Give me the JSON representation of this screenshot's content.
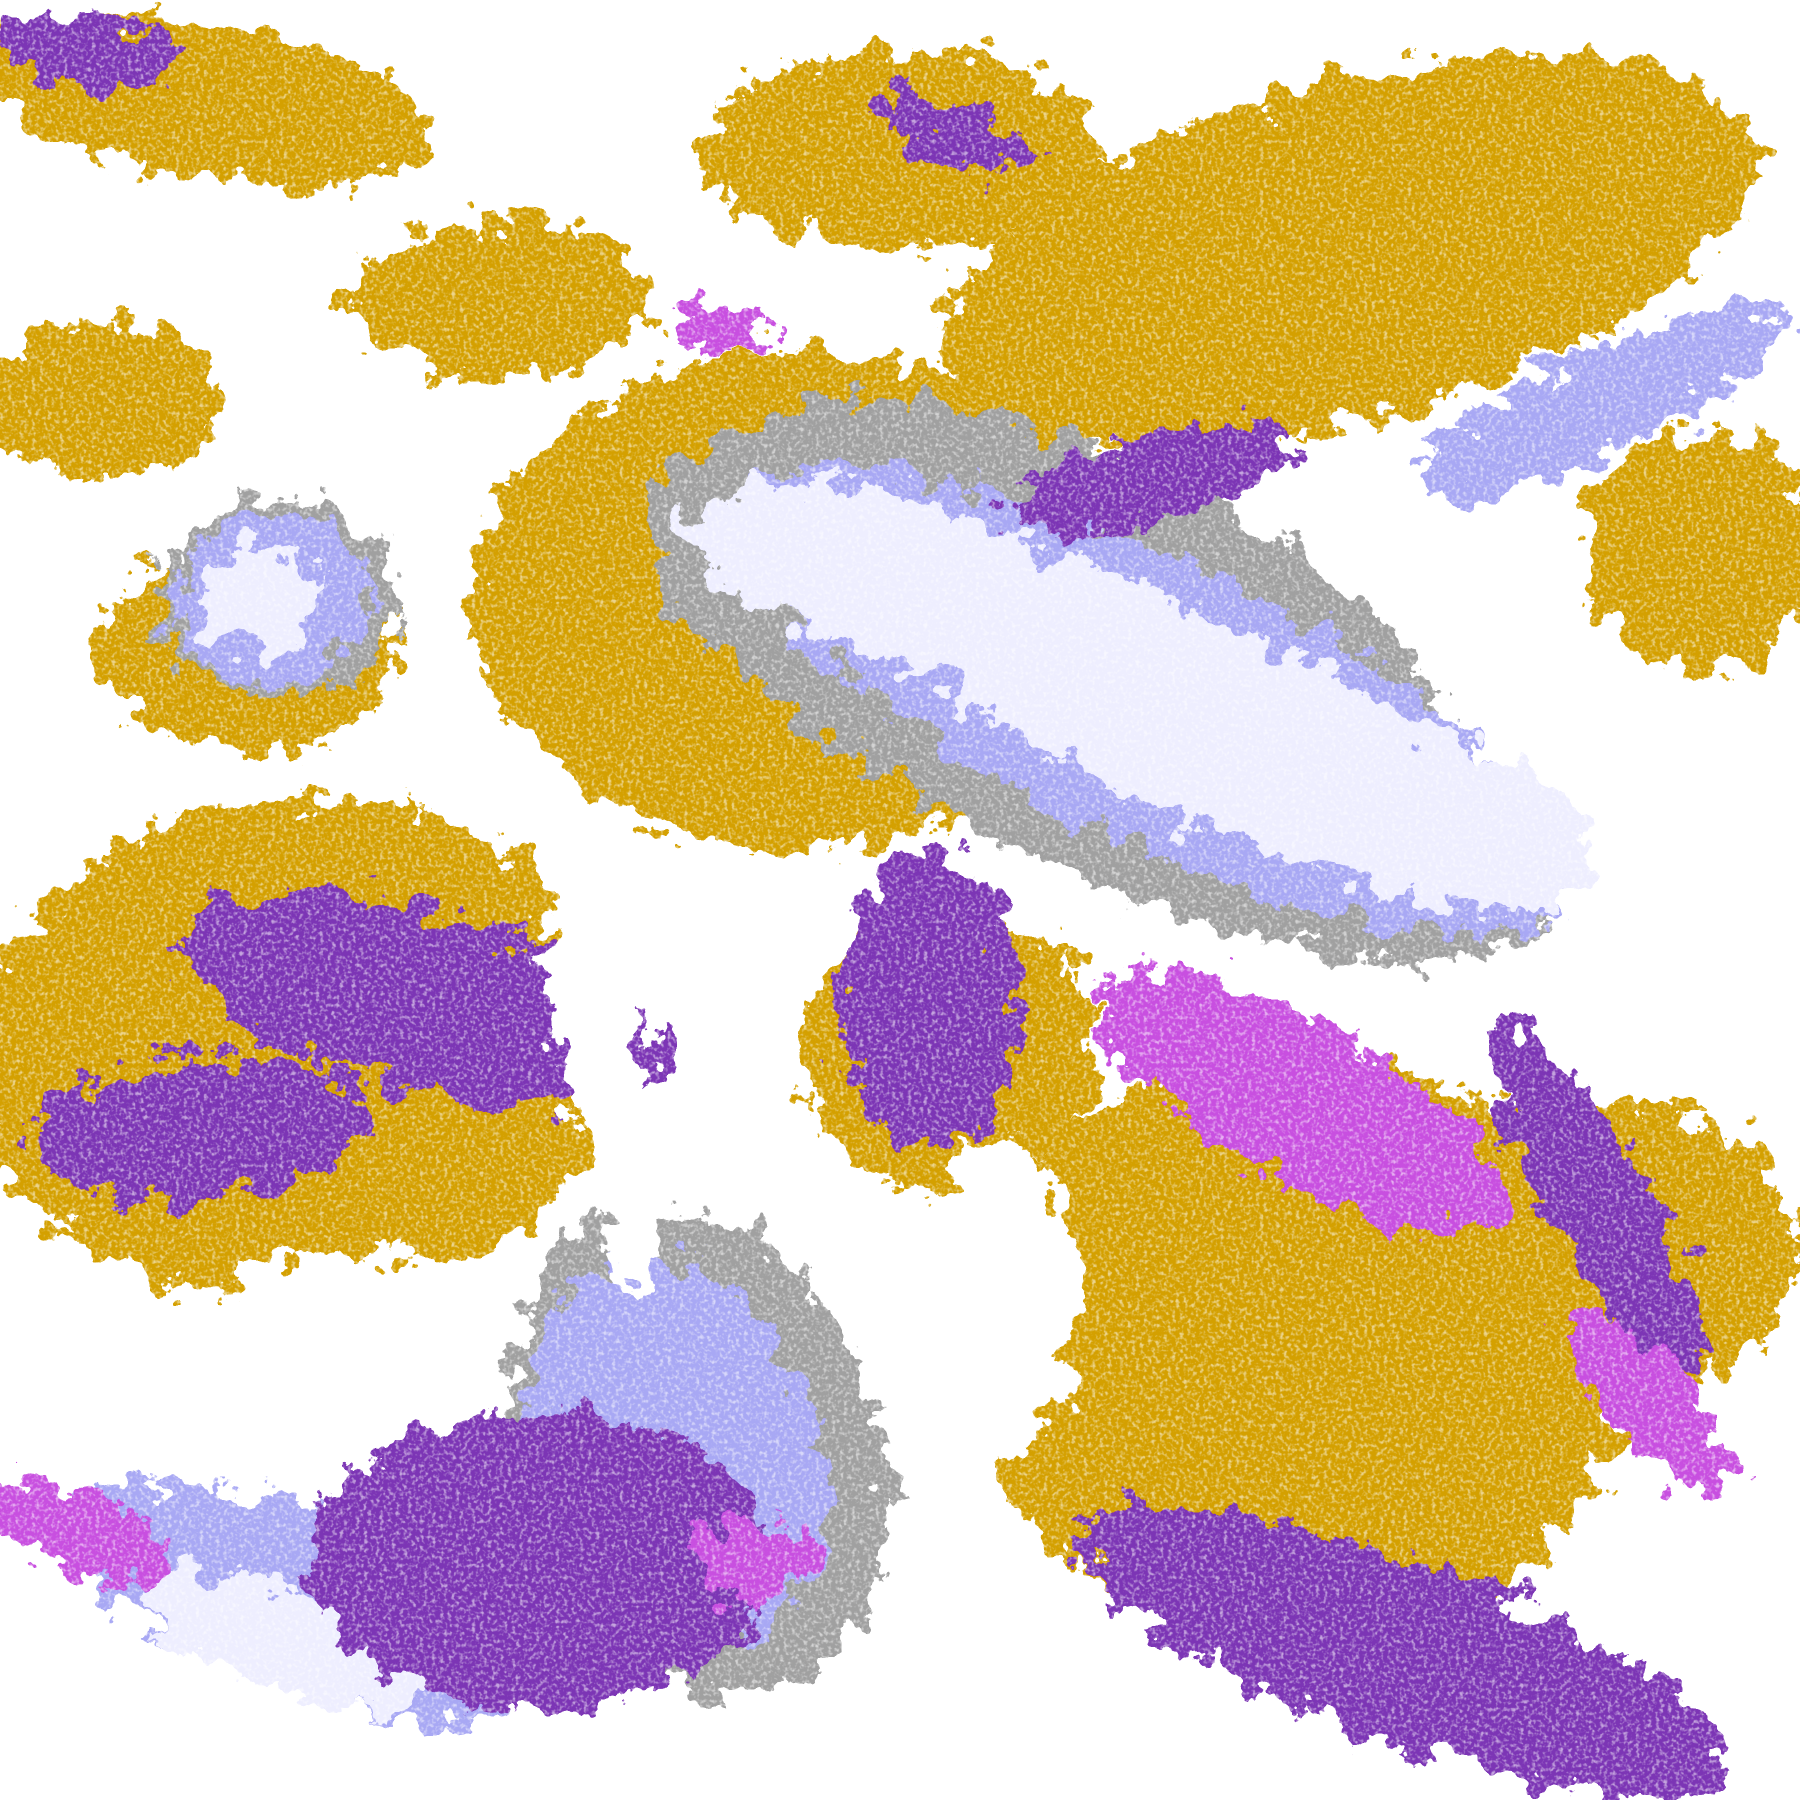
{
  "palette": {
    "background": "#ffffff",
    "gold": "#d4a000",
    "purple": "#7b35b5",
    "magenta": "#c850e0",
    "lavender_light": "#eeeeff",
    "periwinkle": "#a8a8f4",
    "lavender_mid": "#d0d0f8",
    "gray": "#a0a0a0"
  }
}
